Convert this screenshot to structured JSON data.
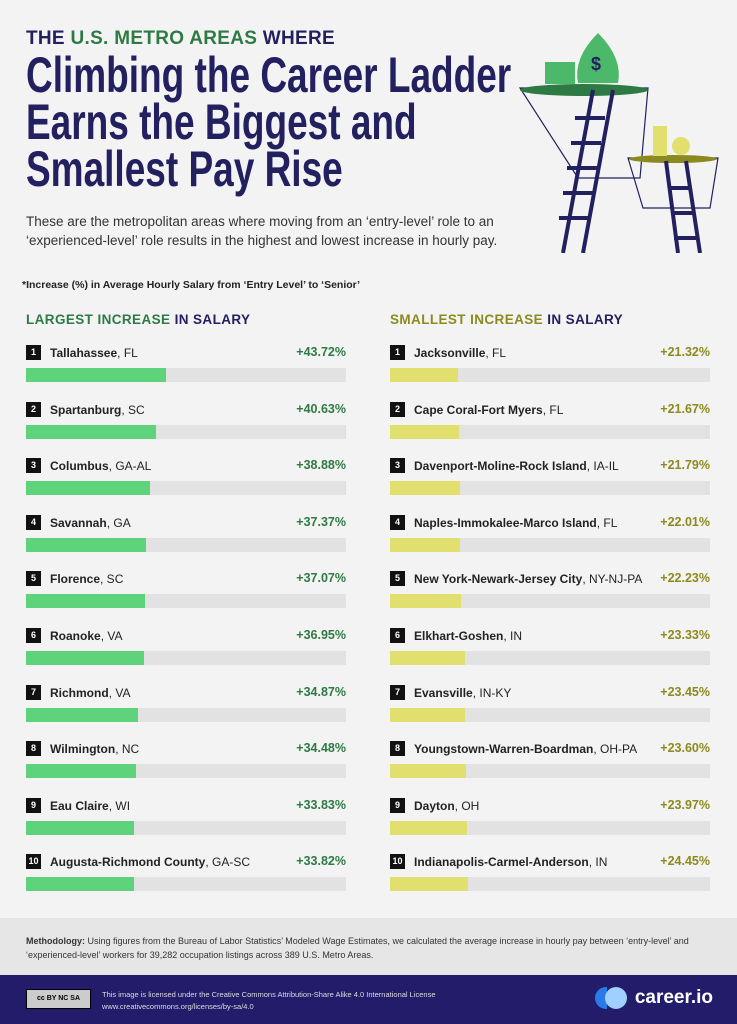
{
  "header": {
    "kicker_a": "THE ",
    "kicker_b": "U.S. METRO AREAS",
    "kicker_c": " WHERE",
    "title_lines": [
      "Climbing the Career Ladder",
      "Earns the Biggest and",
      "Smallest Pay Rise"
    ],
    "subtitle": "These are the metropolitan areas where moving from an ‘entry-level’ role to an ‘experienced-level’ role results in the highest and lowest increase in hourly pay.",
    "note": "*Increase (%) in Average Hourly Salary from ‘Entry Level’ to ‘Senior’"
  },
  "chart_data": [
    {
      "type": "bar",
      "title_a": "LARGEST INCREASE",
      "title_b": " IN SALARY",
      "ylim": [
        0,
        100
      ],
      "color": "#5fd27c",
      "value_color": "#2e7a45",
      "items": [
        {
          "rank": "1",
          "city": "Tallahassee",
          "state": ", FL",
          "value": 43.72,
          "label": "+43.72%"
        },
        {
          "rank": "2",
          "city": "Spartanburg",
          "state": ", SC",
          "value": 40.63,
          "label": "+40.63%"
        },
        {
          "rank": "3",
          "city": "Columbus",
          "state": ", GA-AL",
          "value": 38.88,
          "label": "+38.88%"
        },
        {
          "rank": "4",
          "city": "Savannah",
          "state": ", GA",
          "value": 37.37,
          "label": "+37.37%"
        },
        {
          "rank": "5",
          "city": "Florence",
          "state": ", SC",
          "value": 37.07,
          "label": "+37.07%"
        },
        {
          "rank": "6",
          "city": "Roanoke",
          "state": ", VA",
          "value": 36.95,
          "label": "+36.95%"
        },
        {
          "rank": "7",
          "city": "Richmond",
          "state": ", VA",
          "value": 34.87,
          "label": "+34.87%"
        },
        {
          "rank": "8",
          "city": "Wilmington",
          "state": ", NC",
          "value": 34.48,
          "label": "+34.48%"
        },
        {
          "rank": "9",
          "city": "Eau Claire",
          "state": ", WI",
          "value": 33.83,
          "label": "+33.83%"
        },
        {
          "rank": "10",
          "city": "Augusta-Richmond County",
          "state": ", GA-SC",
          "value": 33.82,
          "label": "+33.82%"
        }
      ]
    },
    {
      "type": "bar",
      "title_a": "SMALLEST INCREASE",
      "title_b": " IN SALARY",
      "ylim": [
        0,
        100
      ],
      "color": "#e1e06f",
      "value_color": "#8c8a1e",
      "items": [
        {
          "rank": "1",
          "city": "Jacksonville",
          "state": ", FL",
          "value": 21.32,
          "label": "+21.32%"
        },
        {
          "rank": "2",
          "city": "Cape Coral-Fort Myers",
          "state": ", FL",
          "value": 21.67,
          "label": "+21.67%"
        },
        {
          "rank": "3",
          "city": "Davenport-Moline-Rock Island",
          "state": ", IA-IL",
          "value": 21.79,
          "label": "+21.79%"
        },
        {
          "rank": "4",
          "city": "Naples-Immokalee-Marco Island",
          "state": ", FL",
          "value": 22.01,
          "label": "+22.01%"
        },
        {
          "rank": "5",
          "city": "New York-Newark-Jersey City",
          "state": ", NY-NJ-PA",
          "value": 22.23,
          "label": "+22.23%"
        },
        {
          "rank": "6",
          "city": "Elkhart-Goshen",
          "state": ", IN",
          "value": 23.33,
          "label": "+23.33%"
        },
        {
          "rank": "7",
          "city": "Evansville",
          "state": ", IN-KY",
          "value": 23.45,
          "label": "+23.45%"
        },
        {
          "rank": "8",
          "city": "Youngstown-Warren-Boardman",
          "state": ", OH-PA",
          "value": 23.6,
          "label": "+23.60%"
        },
        {
          "rank": "9",
          "city": "Dayton",
          "state": ", OH",
          "value": 23.97,
          "label": "+23.97%"
        },
        {
          "rank": "10",
          "city": "Indianapolis-Carmel-Anderson",
          "state": ", IN",
          "value": 24.45,
          "label": "+24.45%"
        }
      ]
    }
  ],
  "methodology": {
    "label": "Methodology:",
    "text": " Using figures from the Bureau of Labor Statistics’ Modeled Wage Estimates, we calculated the average increase in hourly pay between ‘entry-level’ and ‘experienced-level’ workers for 39,282 occupation listings across 389 U.S. Metro Areas."
  },
  "footer": {
    "cc_badge": "cc BY NC SA",
    "license": "This image is licensed under the Creative Commons Attribution-Share Alike 4.0 International License",
    "url": "www.creativecommons.org/licenses/by-sa/4.0",
    "brand": "career.io"
  }
}
